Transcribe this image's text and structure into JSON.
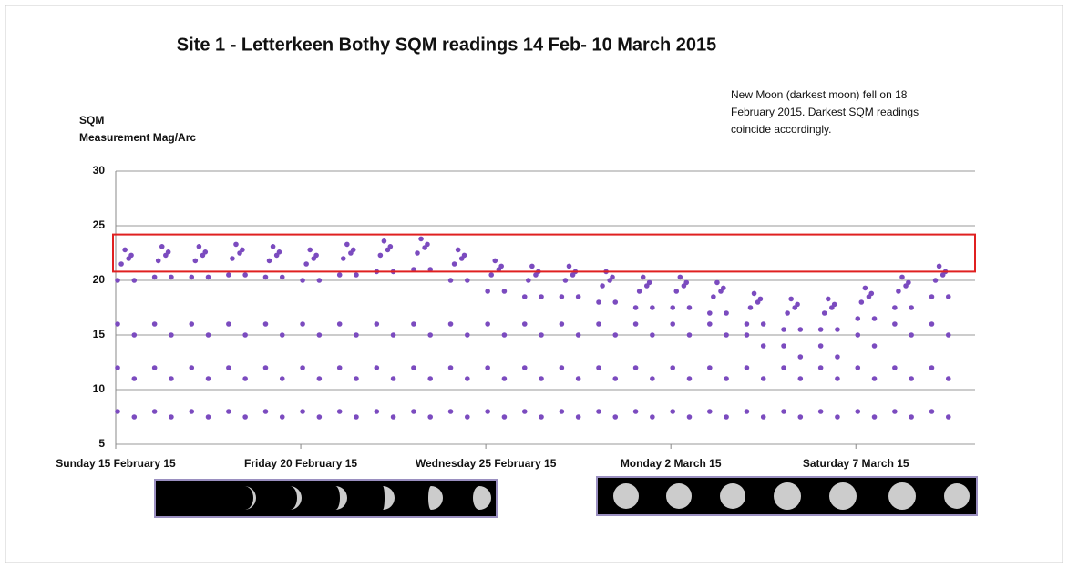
{
  "chart_data": {
    "type": "scatter",
    "title": "Site 1 - Letterkeen Bothy SQM readings 14 Feb- 10 March 2015",
    "ylabel": [
      "SQM",
      "Measurement Mag/Arc"
    ],
    "annotation": [
      "New Moon (darkest moon) fell on 18",
      "February 2015.  Darkest SQM readings",
      "coincide accordingly."
    ],
    "xlim": [
      0,
      23.22
    ],
    "xticks": [
      {
        "value": 0,
        "label": "Sunday 15 February 15"
      },
      {
        "value": 5,
        "label": "Friday 20 February 15"
      },
      {
        "value": 10,
        "label": "Wednesday 25 February 15"
      },
      {
        "value": 15,
        "label": "Monday 2 March 15"
      },
      {
        "value": 20,
        "label": "Saturday 7 March 15"
      }
    ],
    "ylim": [
      5,
      30
    ],
    "yticks": [
      5,
      10,
      15,
      20,
      25,
      30
    ],
    "grid": true,
    "highlight_band": [
      20.8,
      24.2
    ],
    "highlight_color": "#e02020",
    "series": [
      {
        "color": "#7b4bbf",
        "x": [
          0.05,
          0.05,
          0.05,
          0.05,
          0.15,
          0.25,
          0.35,
          0.42,
          0.5,
          0.5,
          0.5,
          0.5,
          1.05,
          1.05,
          1.05,
          1.05,
          1.15,
          1.25,
          1.35,
          1.42,
          1.5,
          1.5,
          1.5,
          1.5,
          2.05,
          2.05,
          2.05,
          2.05,
          2.15,
          2.25,
          2.35,
          2.42,
          2.5,
          2.5,
          2.5,
          2.5,
          3.05,
          3.05,
          3.05,
          3.05,
          3.15,
          3.25,
          3.35,
          3.42,
          3.5,
          3.5,
          3.5,
          3.5,
          4.05,
          4.05,
          4.05,
          4.05,
          4.15,
          4.25,
          4.35,
          4.42,
          4.5,
          4.5,
          4.5,
          4.5,
          5.05,
          5.05,
          5.05,
          5.05,
          5.15,
          5.25,
          5.35,
          5.42,
          5.5,
          5.5,
          5.5,
          5.5,
          6.05,
          6.05,
          6.05,
          6.05,
          6.15,
          6.25,
          6.35,
          6.42,
          6.5,
          6.5,
          6.5,
          6.5,
          7.05,
          7.05,
          7.05,
          7.05,
          7.15,
          7.25,
          7.35,
          7.42,
          7.5,
          7.5,
          7.5,
          7.5,
          8.05,
          8.05,
          8.05,
          8.05,
          8.15,
          8.25,
          8.35,
          8.42,
          8.5,
          8.5,
          8.5,
          8.5,
          9.05,
          9.05,
          9.05,
          9.05,
          9.15,
          9.25,
          9.35,
          9.42,
          9.5,
          9.5,
          9.5,
          9.5,
          10.05,
          10.05,
          10.05,
          10.05,
          10.15,
          10.25,
          10.35,
          10.42,
          10.5,
          10.5,
          10.5,
          10.5,
          11.05,
          11.05,
          11.05,
          11.05,
          11.15,
          11.25,
          11.35,
          11.42,
          11.5,
          11.5,
          11.5,
          11.5,
          12.05,
          12.05,
          12.05,
          12.05,
          12.15,
          12.25,
          12.35,
          12.42,
          12.5,
          12.5,
          12.5,
          12.5,
          13.05,
          13.05,
          13.05,
          13.05,
          13.15,
          13.25,
          13.35,
          13.42,
          13.5,
          13.5,
          13.5,
          13.5,
          14.05,
          14.05,
          14.05,
          14.05,
          14.15,
          14.25,
          14.35,
          14.42,
          14.5,
          14.5,
          14.5,
          14.5,
          15.05,
          15.05,
          15.05,
          15.05,
          15.15,
          15.25,
          15.35,
          15.42,
          15.5,
          15.5,
          15.5,
          15.5,
          16.05,
          16.05,
          16.05,
          16.05,
          16.15,
          16.25,
          16.35,
          16.42,
          16.5,
          16.5,
          16.5,
          16.5,
          17.05,
          17.05,
          17.05,
          17.05,
          17.15,
          17.25,
          17.35,
          17.42,
          17.5,
          17.5,
          17.5,
          17.5,
          18.05,
          18.05,
          18.05,
          18.05,
          18.15,
          18.25,
          18.35,
          18.42,
          18.5,
          18.5,
          18.5,
          18.5,
          19.05,
          19.05,
          19.05,
          19.05,
          19.15,
          19.25,
          19.35,
          19.42,
          19.5,
          19.5,
          19.5,
          19.5,
          20.05,
          20.05,
          20.05,
          20.05,
          20.15,
          20.25,
          20.35,
          20.42,
          20.5,
          20.5,
          20.5,
          20.5,
          21.05,
          21.05,
          21.05,
          21.05,
          21.15,
          21.25,
          21.35,
          21.42,
          21.5,
          21.5,
          21.5,
          21.5,
          22.05,
          22.05,
          22.05,
          22.05,
          22.15,
          22.25,
          22.35,
          22.42,
          22.5,
          22.5,
          22.5,
          22.5
        ],
        "values": [
          8,
          12,
          16,
          20,
          21.5,
          22.8,
          22,
          22.3,
          20,
          15,
          11,
          7.5,
          8,
          12,
          16,
          20.3,
          21.8,
          23.1,
          22.3,
          22.6,
          20.3,
          15,
          11,
          7.5,
          8,
          12,
          16,
          20.3,
          21.8,
          23.1,
          22.3,
          22.6,
          20.3,
          15,
          11,
          7.5,
          8,
          12,
          16,
          20.5,
          22,
          23.3,
          22.5,
          22.8,
          20.5,
          15,
          11,
          7.5,
          8,
          12,
          16,
          20.3,
          21.8,
          23.1,
          22.3,
          22.6,
          20.3,
          15,
          11,
          7.5,
          8,
          12,
          16,
          20,
          21.5,
          22.8,
          22,
          22.3,
          20,
          15,
          11,
          7.5,
          8,
          12,
          16,
          20.5,
          22,
          23.3,
          22.5,
          22.8,
          20.5,
          15,
          11,
          7.5,
          8,
          12,
          16,
          20.8,
          22.3,
          23.6,
          22.8,
          23.1,
          20.8,
          15,
          11,
          7.5,
          8,
          12,
          16,
          21,
          22.5,
          23.8,
          23,
          23.3,
          21,
          15,
          11,
          7.5,
          8,
          12,
          16,
          20,
          21.5,
          22.8,
          22,
          22.3,
          20,
          15,
          11,
          7.5,
          8,
          12,
          16,
          19,
          20.5,
          21.8,
          21,
          21.3,
          19,
          15,
          11,
          7.5,
          8,
          12,
          16,
          18.5,
          20,
          21.3,
          20.5,
          20.8,
          18.5,
          15,
          11,
          7.5,
          8,
          12,
          16,
          18.5,
          20,
          21.3,
          20.5,
          20.8,
          18.5,
          15,
          11,
          7.5,
          8,
          12,
          16,
          18,
          19.5,
          20.8,
          20,
          20.3,
          18,
          15,
          11,
          7.5,
          8,
          12,
          16,
          17.5,
          19,
          20.3,
          19.5,
          19.8,
          17.5,
          15,
          11,
          7.5,
          8,
          12,
          16,
          17.5,
          19,
          20.3,
          19.5,
          19.8,
          17.5,
          15,
          11,
          7.5,
          8,
          12,
          16,
          17,
          18.5,
          19.8,
          19,
          19.3,
          17,
          15,
          11,
          7.5,
          8,
          12,
          15,
          16,
          17.5,
          18.8,
          18,
          18.3,
          16,
          14,
          11,
          7.5,
          8,
          12,
          14,
          15.5,
          17,
          18.3,
          17.5,
          17.8,
          15.5,
          13,
          11,
          7.5,
          8,
          12,
          14,
          15.5,
          17,
          18.3,
          17.5,
          17.8,
          15.5,
          13,
          11,
          7.5,
          8,
          12,
          15,
          16.5,
          18,
          19.3,
          18.5,
          18.8,
          16.5,
          14,
          11,
          7.5,
          8,
          12,
          16,
          17.5,
          19,
          20.3,
          19.5,
          19.8,
          17.5,
          15,
          11,
          7.5,
          8,
          12,
          16,
          18.5,
          20,
          21.3,
          20.5,
          20.8,
          18.5,
          15,
          11,
          7.5
        ]
      }
    ]
  }
}
